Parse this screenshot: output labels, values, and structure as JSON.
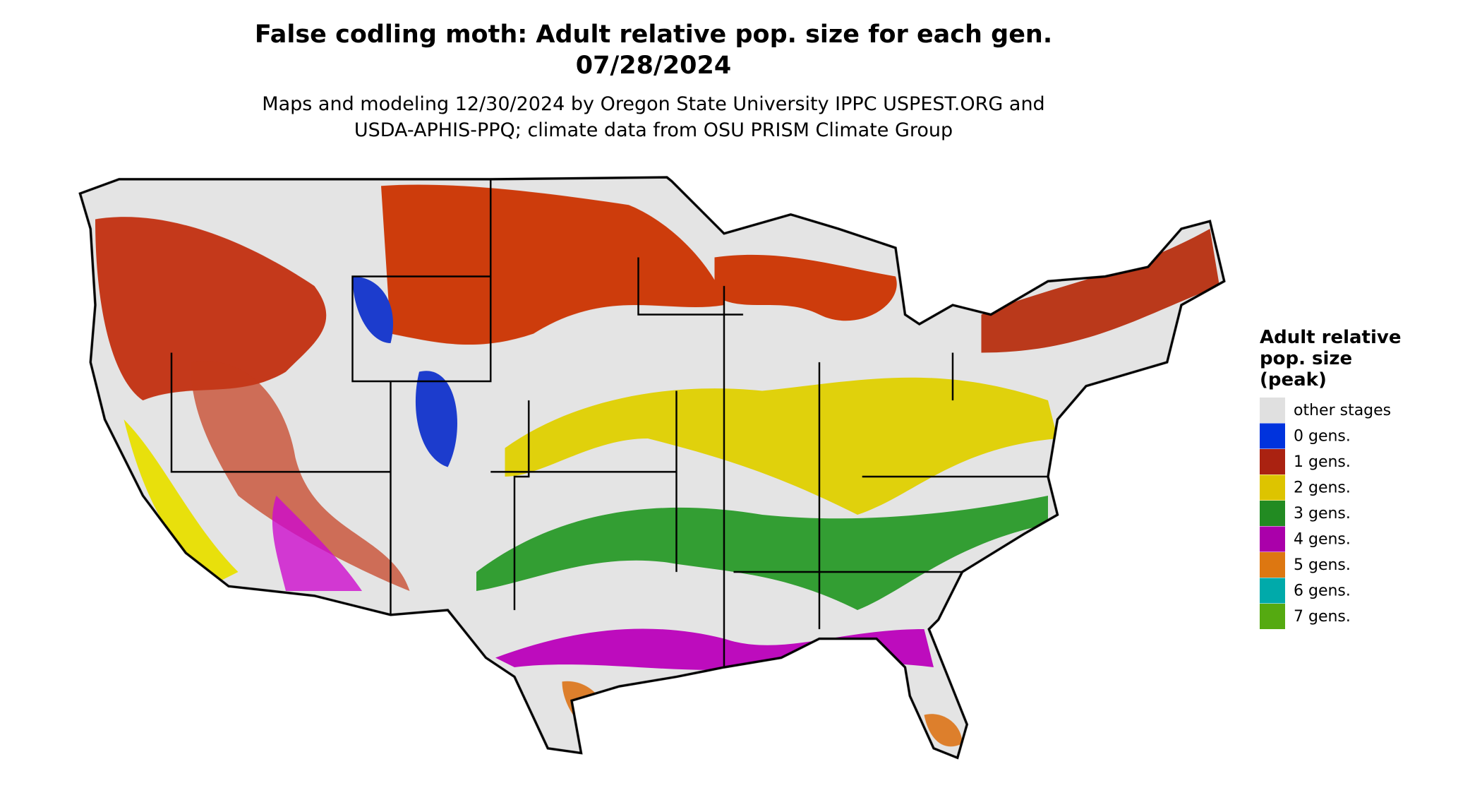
{
  "title": "False codling moth: Adult relative pop. size for each gen.",
  "date": "07/28/2024",
  "subtitle": [
    "Maps and modeling 12/30/2024 by Oregon State University IPPC USPEST.ORG and",
    "USDA-APHIS-PPQ; climate data from OSU PRISM Climate Group"
  ],
  "legend": {
    "title": [
      "Adult relative",
      "pop. size",
      "(peak)"
    ],
    "items": [
      {
        "label": "other stages",
        "color": "#e0e0e0"
      },
      {
        "label": "0 gens.",
        "color": "#0033dd"
      },
      {
        "label": "1 gens.",
        "color": "#aa2211"
      },
      {
        "label": "2 gens.",
        "color": "#ddc400"
      },
      {
        "label": "3 gens.",
        "color": "#228b22"
      },
      {
        "label": "4 gens.",
        "color": "#aa00aa"
      },
      {
        "label": "5 gens.",
        "color": "#dd7711"
      },
      {
        "label": "6 gens.",
        "color": "#00aaaa"
      },
      {
        "label": "7 gens.",
        "color": "#55aa11"
      }
    ]
  }
}
